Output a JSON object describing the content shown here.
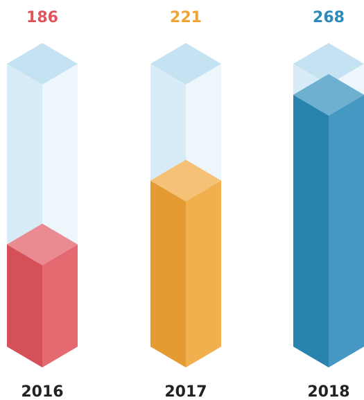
{
  "chart_data": {
    "type": "bar",
    "categories": [
      "2016",
      "2017",
      "2018"
    ],
    "values": [
      186,
      221,
      268
    ],
    "colors": [
      "#e0545d",
      "#f0a435",
      "#2b8ab8"
    ],
    "ylim": [
      130,
      285
    ]
  }
}
